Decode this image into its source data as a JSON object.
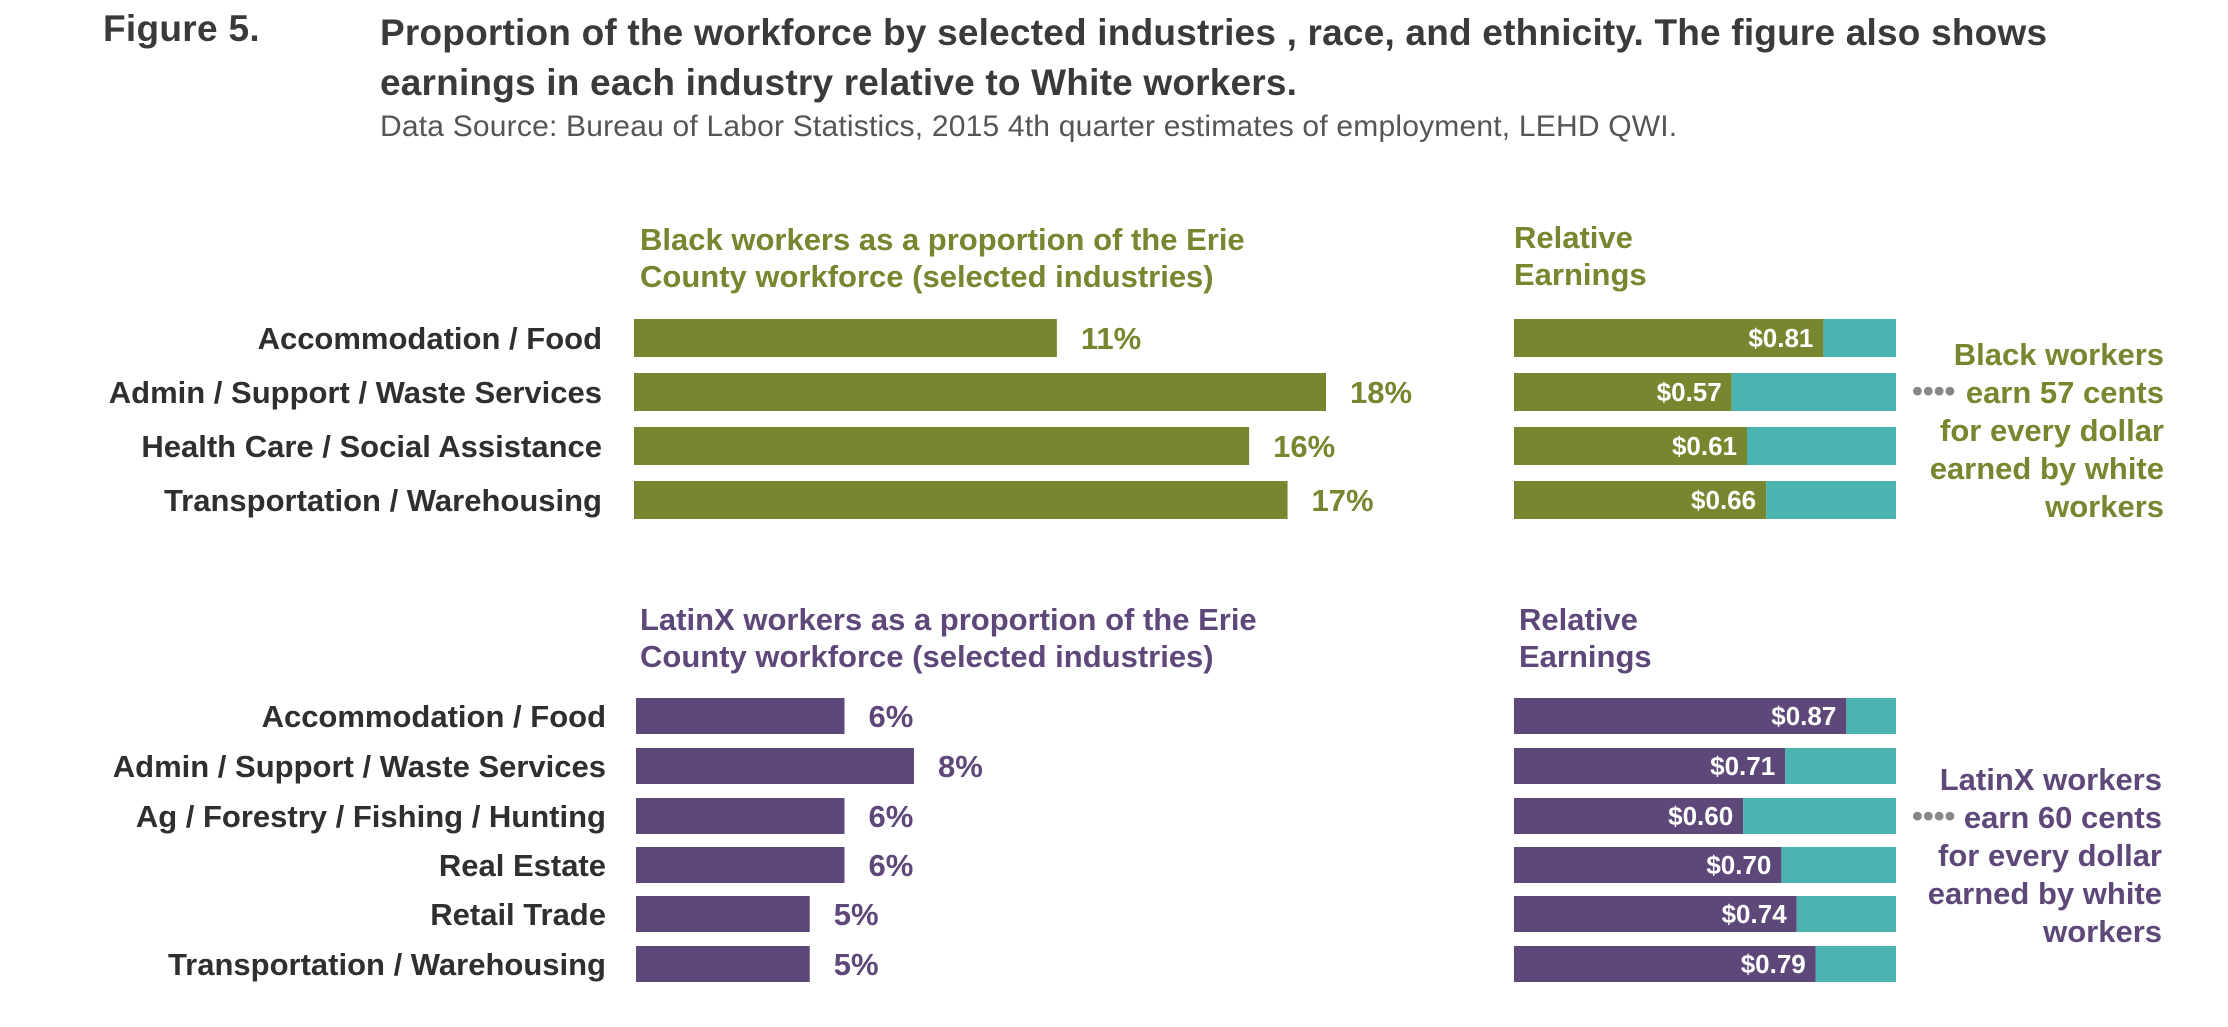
{
  "figure_label": "Figure 5.",
  "title": "Proportion of the workforce by selected industries , race, and ethnicity.  The figure also shows earnings in each industry relative to White workers.",
  "source": "Data Source: Bureau of Labor Statistics, 2015 4th quarter estimates of employment, LEHD QWI.",
  "colors": {
    "black_group": "#77862f",
    "latinx_group": "#5e487a",
    "remainder": "#4bb3b0"
  },
  "chart_data": [
    {
      "type": "bar",
      "orientation": "horizontal",
      "group": "black",
      "title_lines": [
        "Black workers as a proportion of the Erie",
        "County workforce (selected industries)"
      ],
      "categories": [
        "Accommodation / Food",
        "Admin / Support / Waste Services",
        "Health Care / Social Assistance",
        "Transportation / Warehousing"
      ],
      "values": [
        11,
        18,
        16,
        17
      ],
      "value_labels": [
        "11%",
        "18%",
        "16%",
        "17%"
      ],
      "unit": "%",
      "xlim": [
        0,
        18
      ]
    },
    {
      "type": "bar",
      "orientation": "horizontal",
      "stacked": true,
      "group": "black",
      "title_lines": [
        "Relative",
        "Earnings"
      ],
      "categories": [
        "Accommodation / Food",
        "Admin / Support / Waste Services",
        "Health Care / Social Assistance",
        "Transportation / Warehousing"
      ],
      "values": [
        0.81,
        0.57,
        0.61,
        0.66
      ],
      "value_labels": [
        "$0.81",
        "$0.57",
        "$0.61",
        "$0.66"
      ],
      "xlim": [
        0,
        1
      ],
      "annotation_lines": [
        "Black workers",
        "earn 57 cents",
        "for every dollar",
        "earned by white",
        "workers"
      ],
      "annotation_dots": "••••"
    },
    {
      "type": "bar",
      "orientation": "horizontal",
      "group": "latinx",
      "title_lines": [
        "LatinX workers as a proportion of the Erie",
        "County workforce (selected industries)"
      ],
      "categories": [
        "Accommodation / Food",
        "Admin / Support / Waste Services",
        "Ag / Forestry / Fishing / Hunting",
        "Real Estate",
        "Retail Trade",
        "Transportation / Warehousing"
      ],
      "values": [
        6,
        8,
        6,
        6,
        5,
        5
      ],
      "value_labels": [
        "6%",
        "8%",
        "6%",
        "6%",
        "5%",
        "5%"
      ],
      "unit": "%",
      "xlim": [
        0,
        8
      ]
    },
    {
      "type": "bar",
      "orientation": "horizontal",
      "stacked": true,
      "group": "latinx",
      "title_lines": [
        "Relative",
        "Earnings"
      ],
      "categories": [
        "Accommodation / Food",
        "Admin / Support / Waste Services",
        "Ag / Forestry / Fishing / Hunting",
        "Real Estate",
        "Retail Trade",
        "Transportation / Warehousing"
      ],
      "values": [
        0.87,
        0.71,
        0.6,
        0.7,
        0.74,
        0.79
      ],
      "value_labels": [
        "$0.87",
        "$0.71",
        "$0.60",
        "$0.70",
        "$0.74",
        "$0.79"
      ],
      "xlim": [
        0,
        1
      ],
      "annotation_lines": [
        "LatinX workers",
        "earn 60 cents",
        "for every dollar",
        "earned by white",
        "workers"
      ],
      "annotation_dots": "••••"
    }
  ]
}
